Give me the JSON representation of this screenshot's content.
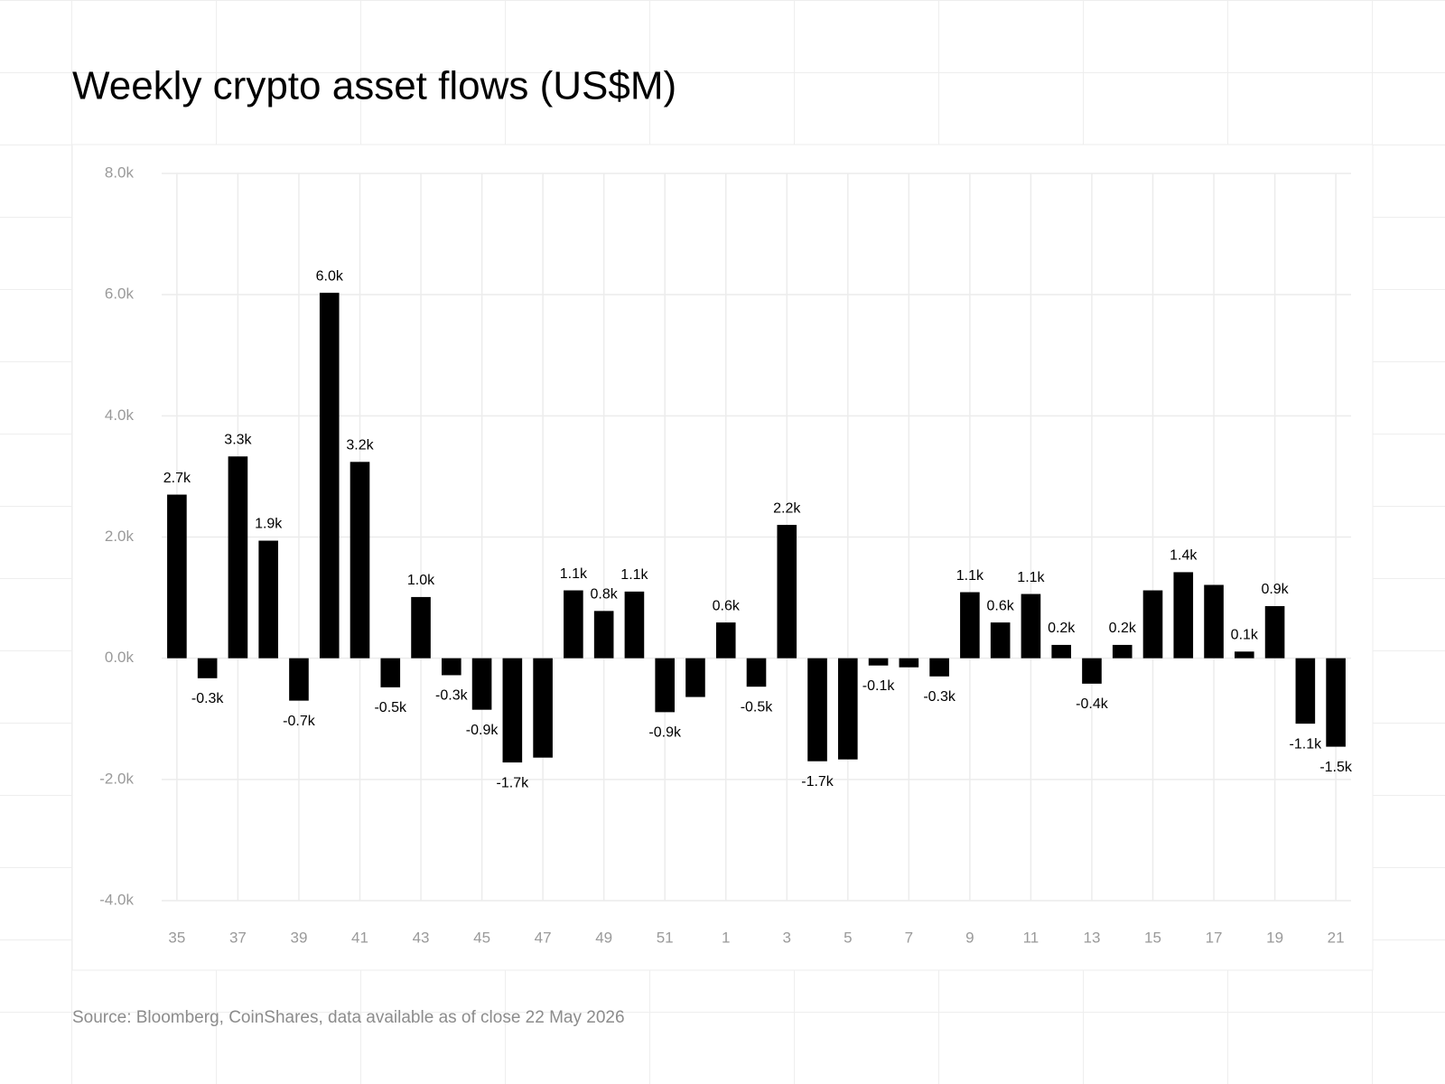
{
  "chart_data": {
    "type": "bar",
    "title": "Weekly crypto asset flows (US$M)",
    "source": "Source: Bloomberg, CoinShares, data available as of close 22 May 2026",
    "categories": [
      35,
      null,
      37,
      null,
      39,
      null,
      41,
      null,
      43,
      null,
      45,
      null,
      47,
      null,
      49,
      null,
      51,
      null,
      1,
      null,
      3,
      null,
      5,
      null,
      7,
      null,
      9,
      null,
      11,
      null,
      13,
      null,
      15,
      null,
      17,
      null,
      19,
      null,
      21
    ],
    "values": [
      2700,
      -330,
      3330,
      1940,
      -700,
      6030,
      3240,
      -480,
      1010,
      -280,
      -850,
      -1720,
      -1640,
      1120,
      780,
      1100,
      -890,
      -640,
      590,
      -470,
      2200,
      -1700,
      -1670,
      -120,
      -150,
      -300,
      1090,
      590,
      1060,
      220,
      -420,
      220,
      1120,
      1420,
      1210,
      110,
      860,
      -1080,
      -1460
    ],
    "value_labels": [
      "2.7k",
      "-0.3k",
      "3.3k",
      "1.9k",
      "-0.7k",
      "6.0k",
      "3.2k",
      "-0.5k",
      "1.0k",
      "-0.3k",
      "-0.9k",
      "-1.7k",
      null,
      "1.1k",
      "0.8k",
      "1.1k",
      "-0.9k",
      null,
      "0.6k",
      "-0.5k",
      "2.2k",
      "-1.7k",
      null,
      "-0.1k",
      null,
      "-0.3k",
      "1.1k",
      "0.6k",
      "1.1k",
      "0.2k",
      "-0.4k",
      "0.2k",
      null,
      "1.4k",
      null,
      "0.1k",
      "0.9k",
      "-1.1k",
      "-1.5k"
    ],
    "color": "#000000",
    "ylim": [
      -4000,
      8000
    ],
    "yticks": [
      {
        "value": -4000,
        "label": "-4.0k"
      },
      {
        "value": -2000,
        "label": "-2.0k"
      },
      {
        "value": 0,
        "label": "0.0k"
      },
      {
        "value": 2000,
        "label": "2.0k"
      },
      {
        "value": 4000,
        "label": "4.0k"
      },
      {
        "value": 6000,
        "label": "6.0k"
      },
      {
        "value": 8000,
        "label": "8.0k"
      }
    ],
    "grid": true
  }
}
